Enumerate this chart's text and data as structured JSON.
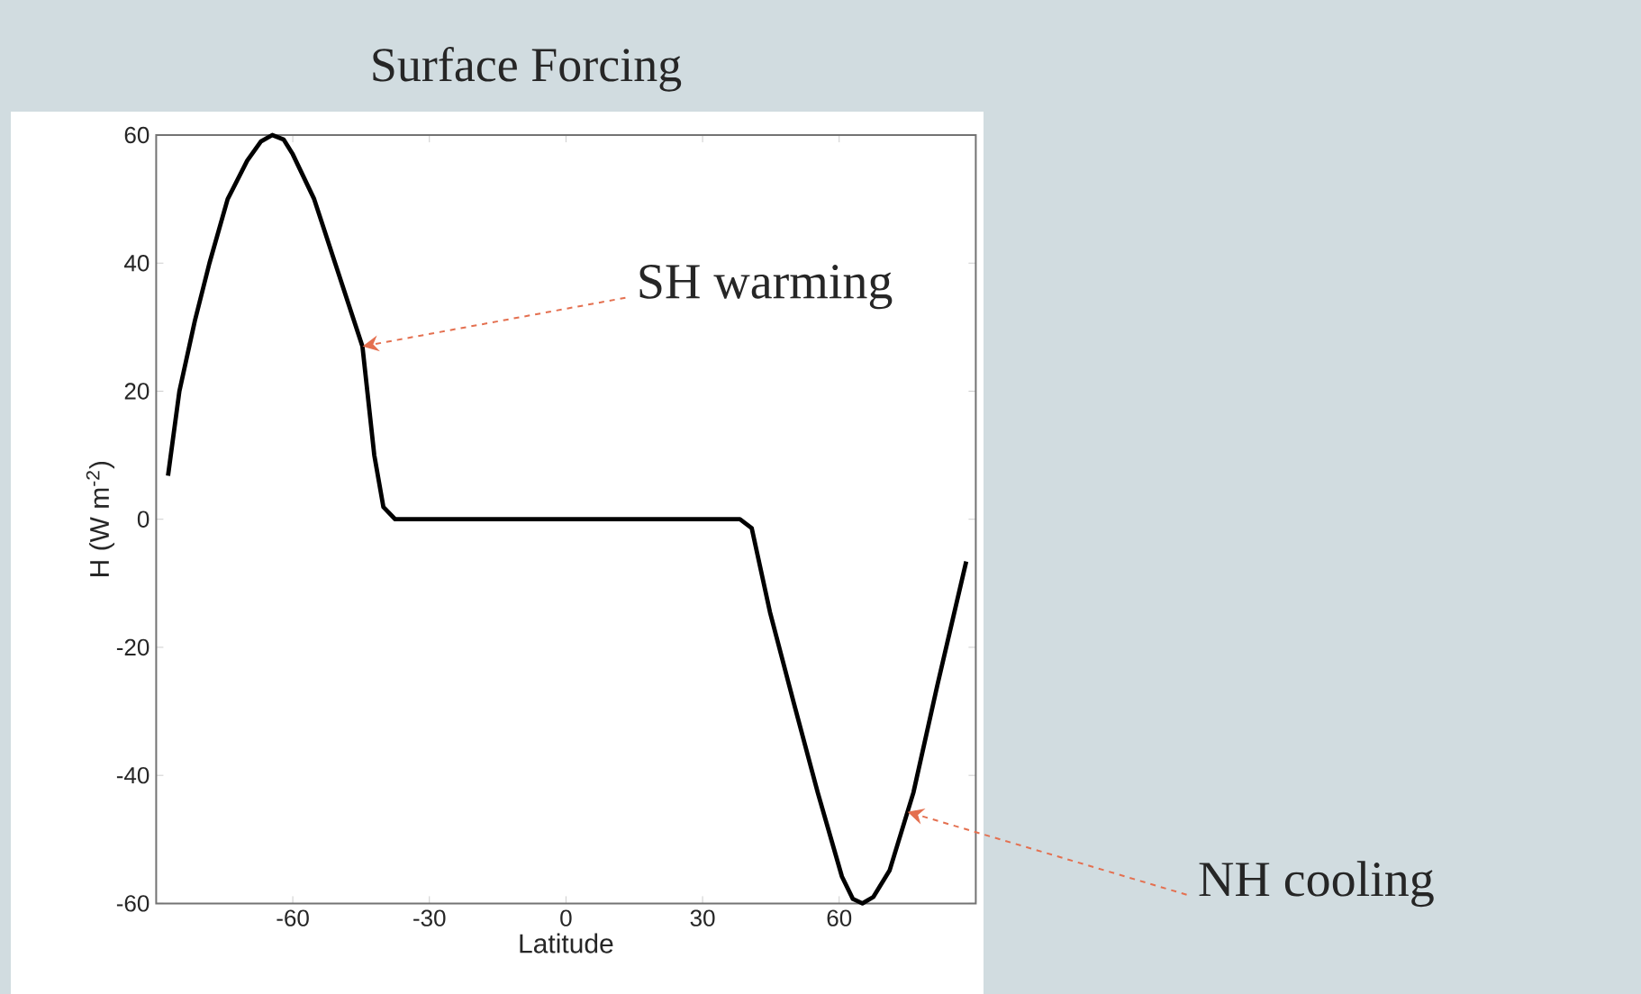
{
  "chart_data": {
    "type": "line",
    "title": "Surface Forcing",
    "xlabel": "Latitude",
    "ylabel": "H (W m$^{-2}$)",
    "xlim": [
      -90,
      90
    ],
    "xticks": [
      -60,
      -30,
      0,
      30,
      60
    ],
    "ylim": [
      -60,
      60
    ],
    "yticks": [
      -60,
      -40,
      -20,
      0,
      20,
      40,
      60
    ],
    "series": [
      {
        "color": "#000000",
        "x": [
          -87.4,
          -84.9,
          -81.5,
          -78.3,
          -74.3,
          -70,
          -67,
          -64.5,
          -62,
          -60,
          -55.3,
          -50.7,
          -44.7,
          -42.1,
          -40.1,
          -37.5,
          0,
          38.2,
          40.8,
          44.8,
          50,
          55.3,
          60.6,
          63,
          65.1,
          67.5,
          71.1,
          76.3,
          81.6,
          87.9
        ],
        "values": [
          6.8,
          20,
          31,
          40,
          50,
          56,
          59,
          60,
          59.3,
          57,
          50,
          40,
          27,
          10,
          1.9,
          0,
          0,
          0,
          -1.4,
          -14.5,
          -28.6,
          -42.7,
          -55.8,
          -59.3,
          -60,
          -59,
          -54.8,
          -42.7,
          -25.8,
          -6.6
        ]
      }
    ],
    "annotations": [
      {
        "text": "SH warming",
        "x": -44.7,
        "y": 27
      },
      {
        "text": "NH cooling",
        "x": 75,
        "y": -45.7
      }
    ]
  }
}
